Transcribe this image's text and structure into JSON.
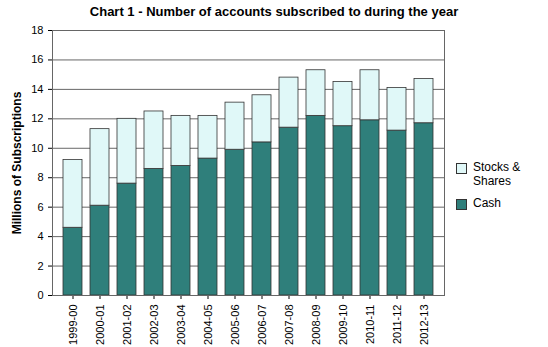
{
  "chart_data": {
    "type": "bar",
    "title": "Chart 1 - Number of accounts subscribed to during the year",
    "y_label": "Millions of Subscriptions",
    "categories": [
      "1999-00",
      "2000-01",
      "2001-02",
      "2002-03",
      "2003-04",
      "2004-05",
      "2005-06",
      "2006-07",
      "2007-08",
      "2008-09",
      "2009-10",
      "2010-11",
      "2011-12",
      "2012-13"
    ],
    "series": [
      {
        "name": "Cash",
        "color": "#2f7f7b",
        "values": [
          4.6,
          6.1,
          7.6,
          8.6,
          8.8,
          9.3,
          9.9,
          10.4,
          11.4,
          12.2,
          11.5,
          11.9,
          11.2,
          11.7
        ]
      },
      {
        "name": "Stocks & Shares",
        "color": "#e0f8f8",
        "values": [
          4.6,
          5.2,
          4.4,
          3.9,
          3.4,
          2.9,
          3.2,
          3.2,
          3.4,
          3.1,
          3.0,
          3.4,
          2.9,
          3.0
        ]
      }
    ],
    "stacked": true,
    "ylim": [
      0,
      18
    ],
    "yticks": [
      0,
      2,
      4,
      6,
      8,
      10,
      12,
      14,
      16,
      18
    ],
    "grid": true,
    "legend": "right"
  }
}
